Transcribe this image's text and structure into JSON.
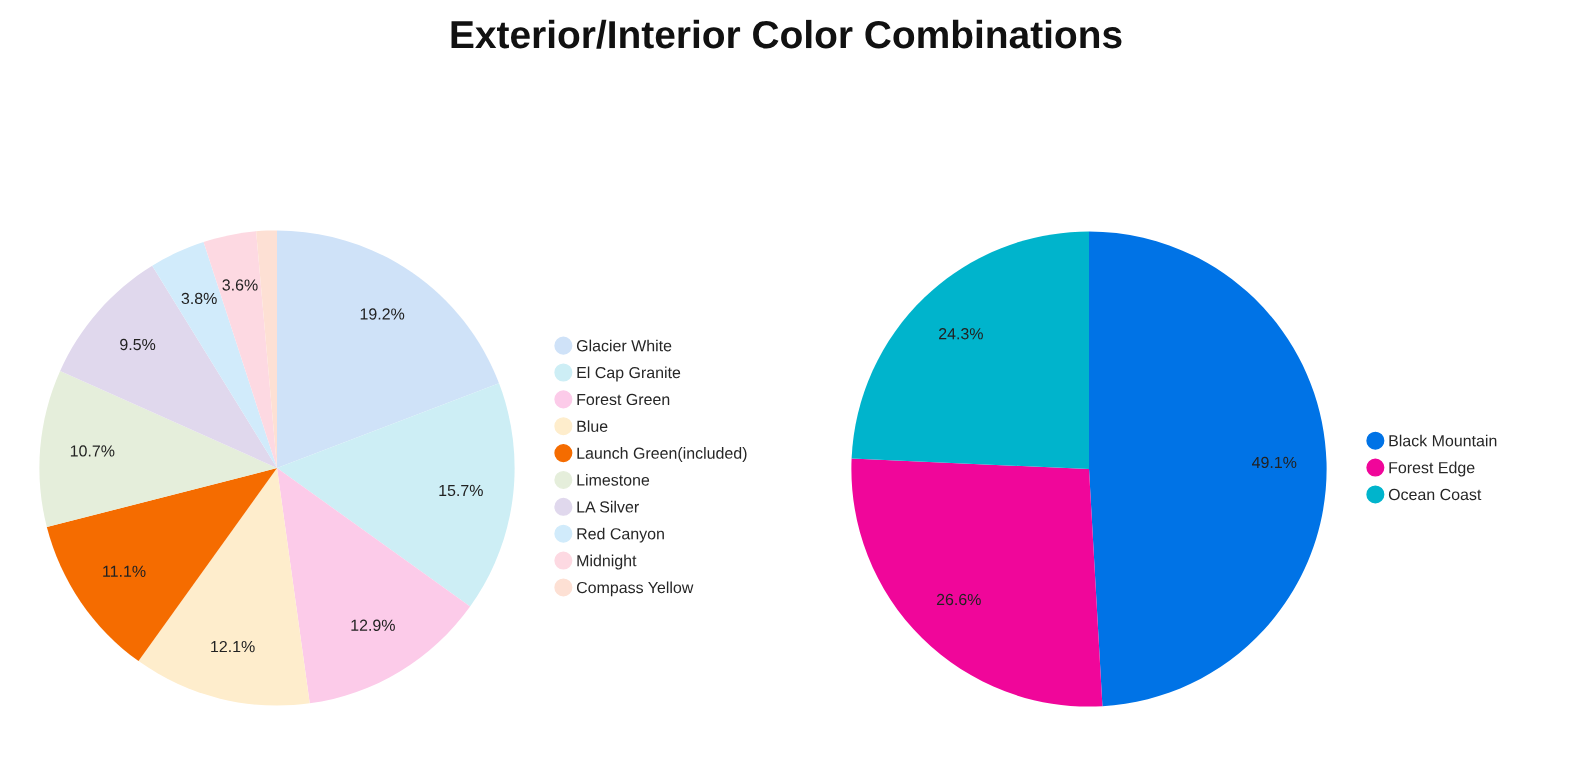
{
  "chart_data": [
    {
      "type": "pie",
      "title": "Exterior/Interior Color Combinations",
      "categories": [
        "Glacier White",
        "El Cap Granite",
        "Forest Green",
        "Blue",
        "Launch Green(included)",
        "Limestone",
        "LA Silver",
        "Red Canyon",
        "Midnight",
        "Compass Yellow"
      ],
      "values": [
        19.2,
        15.7,
        12.9,
        12.1,
        11.1,
        10.7,
        9.5,
        3.8,
        3.6,
        1.4
      ],
      "value_labels": [
        "19.2%",
        "15.7%",
        "12.9%",
        "12.1%",
        "11.1%",
        "10.7%",
        "9.5%",
        "3.8%",
        "3.6%",
        null
      ],
      "colors": [
        "#cfe2f8",
        "#cdeef5",
        "#fccbe9",
        "#feedcc",
        "#f56c00",
        "#e5eedb",
        "#e0d8ed",
        "#d1ebfb",
        "#fdd9e2",
        "#fde0d4"
      ],
      "legend": "right"
    },
    {
      "type": "pie",
      "categories": [
        "Black Mountain",
        "Forest Edge",
        "Ocean Coast"
      ],
      "values": [
        49.1,
        26.6,
        24.3
      ],
      "value_labels": [
        "49.1%",
        "26.6%",
        "24.3%"
      ],
      "colors": [
        "#0073e6",
        "#f0069a",
        "#00b4cc"
      ],
      "legend": "right"
    }
  ]
}
